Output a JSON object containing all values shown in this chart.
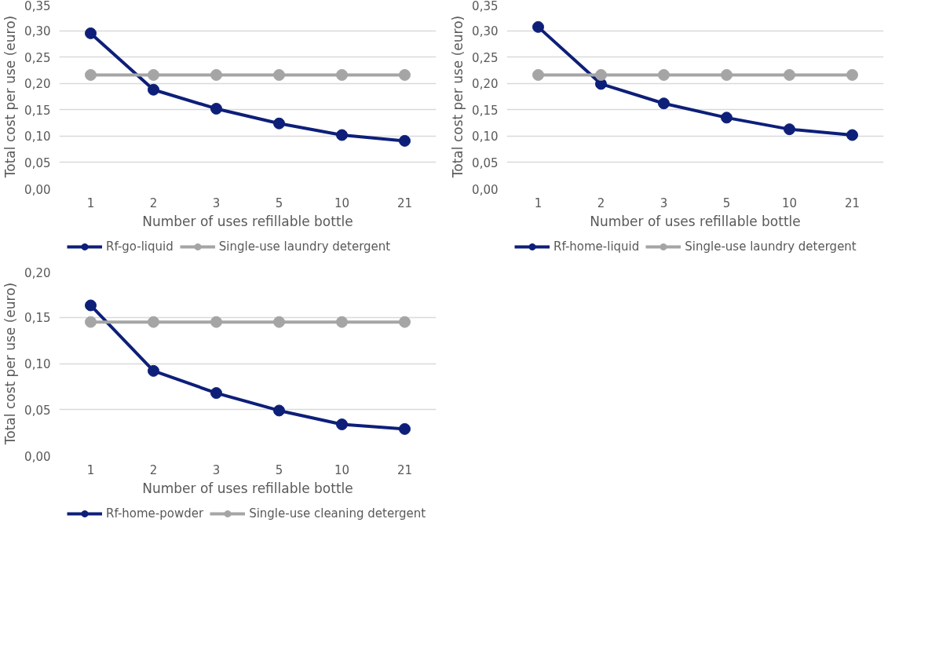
{
  "chart_data": [
    {
      "type": "line",
      "xlabel": "Number of uses refillable bottle",
      "ylabel": "Total cost per use (euro)",
      "categories": [
        "1",
        "2",
        "3",
        "5",
        "10",
        "21"
      ],
      "series": [
        {
          "name": "Rf-go-liquid",
          "color": "#0d1f78",
          "values": [
            0.295,
            0.188,
            0.152,
            0.124,
            0.102,
            0.091
          ]
        },
        {
          "name": "Single-use laundry detergent",
          "color": "#a5a5a5",
          "values": [
            0.216,
            0.216,
            0.216,
            0.216,
            0.216,
            0.216
          ]
        }
      ],
      "ylim": [
        0,
        0.35
      ],
      "yticks": [
        {
          "value": 0,
          "label": "0,00"
        },
        {
          "value": 0.05,
          "label": "0,05"
        },
        {
          "value": 0.1,
          "label": "0,10"
        },
        {
          "value": 0.15,
          "label": "0,15"
        },
        {
          "value": 0.2,
          "label": "0,20"
        },
        {
          "value": 0.25,
          "label": "0,25"
        },
        {
          "value": 0.3,
          "label": "0,30"
        },
        {
          "value": 0.35,
          "label": "0,35"
        }
      ],
      "grid": "y",
      "legend": "bottom",
      "marker": "circle"
    },
    {
      "type": "line",
      "xlabel": "Number of uses refillable bottle",
      "ylabel": "Total cost per use (euro)",
      "categories": [
        "1",
        "2",
        "3",
        "5",
        "10",
        "21"
      ],
      "series": [
        {
          "name": "Rf-home-liquid",
          "color": "#0d1f78",
          "values": [
            0.307,
            0.199,
            0.162,
            0.135,
            0.113,
            0.102
          ]
        },
        {
          "name": "Single-use laundry detergent",
          "color": "#a5a5a5",
          "values": [
            0.216,
            0.216,
            0.216,
            0.216,
            0.216,
            0.216
          ]
        }
      ],
      "ylim": [
        0,
        0.35
      ],
      "yticks": [
        {
          "value": 0,
          "label": "0,00"
        },
        {
          "value": 0.05,
          "label": "0,05"
        },
        {
          "value": 0.1,
          "label": "0,10"
        },
        {
          "value": 0.15,
          "label": "0,15"
        },
        {
          "value": 0.2,
          "label": "0,20"
        },
        {
          "value": 0.25,
          "label": "0,25"
        },
        {
          "value": 0.3,
          "label": "0,30"
        },
        {
          "value": 0.35,
          "label": "0,35"
        }
      ],
      "grid": "y",
      "legend": "bottom",
      "marker": "circle"
    },
    {
      "type": "line",
      "xlabel": "Number of uses refillable bottle",
      "ylabel": "Total cost per use (euro)",
      "categories": [
        "1",
        "2",
        "3",
        "5",
        "10",
        "21"
      ],
      "series": [
        {
          "name": "Rf-home-powder",
          "color": "#0d1f78",
          "values": [
            0.163,
            0.092,
            0.068,
            0.049,
            0.034,
            0.029
          ]
        },
        {
          "name": "Single-use cleaning detergent",
          "color": "#a5a5a5",
          "values": [
            0.145,
            0.145,
            0.145,
            0.145,
            0.145,
            0.145
          ]
        }
      ],
      "ylim": [
        0,
        0.2
      ],
      "yticks": [
        {
          "value": 0,
          "label": "0,00"
        },
        {
          "value": 0.05,
          "label": "0,05"
        },
        {
          "value": 0.1,
          "label": "0,10"
        },
        {
          "value": 0.15,
          "label": "0,15"
        },
        {
          "value": 0.2,
          "label": "0,20"
        }
      ],
      "grid": "y",
      "legend": "bottom",
      "marker": "circle"
    }
  ]
}
